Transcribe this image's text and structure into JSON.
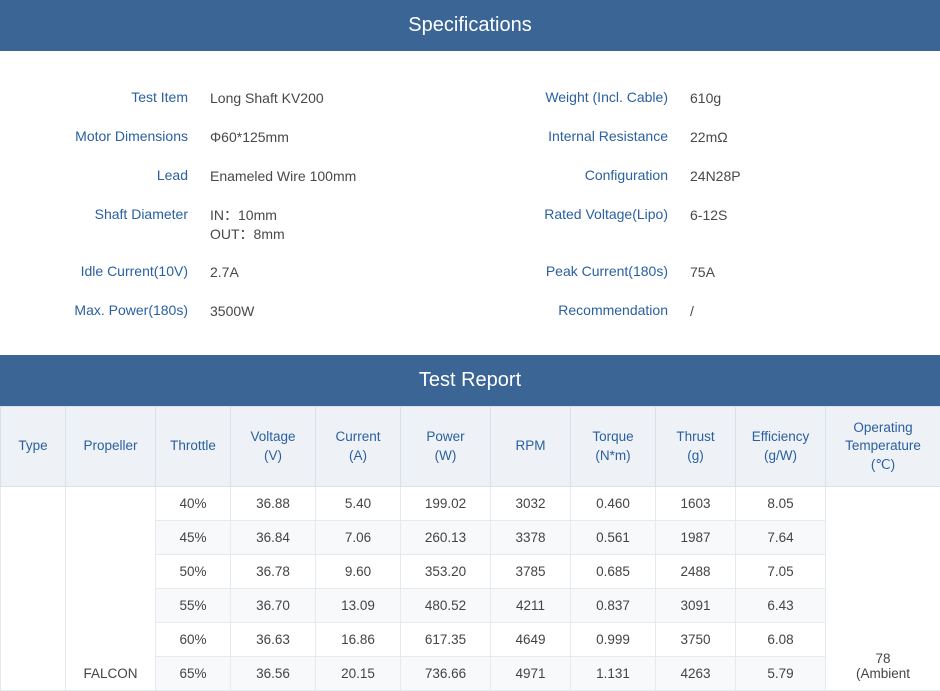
{
  "sections": {
    "specs_title": "Specifications",
    "report_title": "Test Report"
  },
  "specs": {
    "left": [
      {
        "label": "Test Item",
        "value": "Long Shaft KV200"
      },
      {
        "label": "Motor Dimensions",
        "value": "Φ60*125mm"
      },
      {
        "label": "Lead",
        "value": "Enameled Wire 100mm"
      },
      {
        "label": "Shaft Diameter",
        "value": "IN：10mm\nOUT：8mm"
      },
      {
        "label": "Idle Current(10V)",
        "value": "2.7A"
      },
      {
        "label": "Max. Power(180s)",
        "value": "3500W"
      }
    ],
    "right": [
      {
        "label": "Weight (Incl. Cable)",
        "value": "610g"
      },
      {
        "label": "Internal Resistance",
        "value": "22mΩ"
      },
      {
        "label": "Configuration",
        "value": "24N28P"
      },
      {
        "label": "Rated Voltage(Lipo)",
        "value": "6-12S"
      },
      {
        "label": "Peak Current(180s)",
        "value": "75A"
      },
      {
        "label": "Recommendation",
        "value": "/"
      }
    ]
  },
  "report": {
    "columns": [
      "Type",
      "Propeller",
      "Throttle",
      "Voltage\n(V)",
      "Current\n(A)",
      "Power\n(W)",
      "RPM",
      "Torque\n(N*m)",
      "Thrust\n(g)",
      "Efficiency\n(g/W)",
      "Operating\nTemperature\n(℃)"
    ],
    "type_cell": "",
    "propeller_cell": "FALCON",
    "temp_cell": "78\n(Ambient",
    "rows": [
      {
        "throttle": "40%",
        "voltage": "36.88",
        "current": "5.40",
        "power": "199.02",
        "rpm": "3032",
        "torque": "0.460",
        "thrust": "1603",
        "eff": "8.05"
      },
      {
        "throttle": "45%",
        "voltage": "36.84",
        "current": "7.06",
        "power": "260.13",
        "rpm": "3378",
        "torque": "0.561",
        "thrust": "1987",
        "eff": "7.64"
      },
      {
        "throttle": "50%",
        "voltage": "36.78",
        "current": "9.60",
        "power": "353.20",
        "rpm": "3785",
        "torque": "0.685",
        "thrust": "2488",
        "eff": "7.05"
      },
      {
        "throttle": "55%",
        "voltage": "36.70",
        "current": "13.09",
        "power": "480.52",
        "rpm": "4211",
        "torque": "0.837",
        "thrust": "3091",
        "eff": "6.43"
      },
      {
        "throttle": "60%",
        "voltage": "36.63",
        "current": "16.86",
        "power": "617.35",
        "rpm": "4649",
        "torque": "0.999",
        "thrust": "3750",
        "eff": "6.08"
      },
      {
        "throttle": "65%",
        "voltage": "36.56",
        "current": "20.15",
        "power": "736.66",
        "rpm": "4971",
        "torque": "1.131",
        "thrust": "4263",
        "eff": "5.79"
      }
    ]
  },
  "colors": {
    "header_bg": "#3b6595",
    "label_color": "#2a5fa0",
    "th_bg": "#eef2f6",
    "row_alt_bg": "#f7f9fb",
    "border": "#e5eaef"
  }
}
